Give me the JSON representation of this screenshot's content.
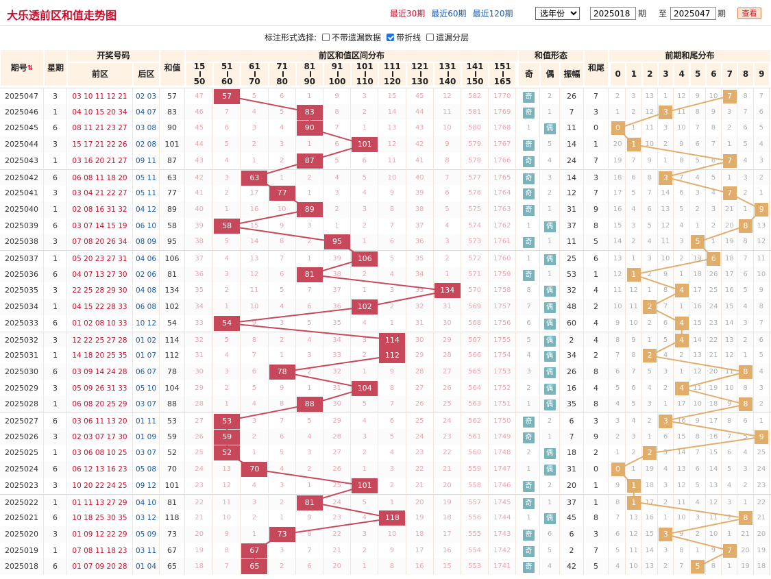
{
  "title": "大乐透前区和值走势图",
  "ranges": [
    "最近30期",
    "最近60期",
    "最近120期"
  ],
  "active_range": "最近30期",
  "year_select": "选年份",
  "period_from": "2025018",
  "period_to": "2025047",
  "label_qi": "期",
  "label_zhi": "至",
  "query_btn": "查看",
  "options_label": "标注形式选择:",
  "options": [
    {
      "label": "不带遗漏数据",
      "checked": false
    },
    {
      "label": "带折线",
      "checked": true
    },
    {
      "label": "遗漏分层",
      "checked": false
    }
  ],
  "headers": {
    "qihao": "期号",
    "sort_icon": "sort-icon",
    "xingqi": "星期",
    "kaijiang": "开奖号码",
    "qianqu": "前区",
    "houqu": "后区",
    "hezhi": "和值",
    "qujian_title": "前区和值区间分布",
    "xingtai": "和值形态",
    "ji": "奇",
    "ou": "偶",
    "zhenfu": "振幅",
    "hewei": "和尾",
    "weishu_title": "前期和尾分布"
  },
  "intervals": [
    [
      "15",
      "50"
    ],
    [
      "51",
      "60"
    ],
    [
      "61",
      "70"
    ],
    [
      "71",
      "80"
    ],
    [
      "81",
      "90"
    ],
    [
      "91",
      "100"
    ],
    [
      "101",
      "110"
    ],
    [
      "111",
      "120"
    ],
    [
      "121",
      "130"
    ],
    [
      "131",
      "140"
    ],
    [
      "141",
      "150"
    ],
    [
      "151",
      "165"
    ]
  ],
  "digits": [
    "0",
    "1",
    "2",
    "3",
    "4",
    "5",
    "6",
    "7",
    "8",
    "9"
  ],
  "colors": {
    "title": "#c8102e",
    "hit": "#c8485b",
    "tail": "#e1ad6b",
    "oe": "#78b4ba",
    "header_bg": "#fdf2e3"
  },
  "rows": [
    {
      "q": "2025047",
      "w": "3",
      "f": "03 10 11 12 21",
      "b": "02 03",
      "s": "57",
      "iv": [
        "47",
        "57",
        "5",
        "6",
        "1",
        "9",
        "3",
        "15",
        "45",
        "12",
        "582",
        "1770"
      ],
      "j": "奇",
      "o": "2",
      "zf": "26",
      "hw": "7",
      "t": [
        "2",
        "3",
        "13",
        "1",
        "12",
        "9",
        "10",
        "7",
        "8",
        "7"
      ]
    },
    {
      "q": "2025046",
      "w": "1",
      "f": "04 10 15 20 34",
      "b": "04 07",
      "s": "83",
      "iv": [
        "46",
        "7",
        "4",
        "5",
        "83",
        "8",
        "2",
        "14",
        "44",
        "11",
        "581",
        "1769"
      ],
      "j": "奇",
      "o": "1",
      "zf": "7",
      "hw": "3",
      "t": [
        "1",
        "2",
        "12",
        "3",
        "11",
        "8",
        "9",
        "3",
        "7",
        "6"
      ]
    },
    {
      "q": "2025045",
      "w": "6",
      "f": "08 11 21 23 27",
      "b": "03 08",
      "s": "90",
      "iv": [
        "45",
        "6",
        "3",
        "4",
        "90",
        "7",
        "1",
        "13",
        "43",
        "10",
        "580",
        "1768"
      ],
      "j": "1",
      "o": "偶",
      "zf": "11",
      "hw": "0",
      "t": [
        "0",
        "1",
        "11",
        "3",
        "10",
        "7",
        "8",
        "2",
        "6",
        "5"
      ]
    },
    {
      "q": "2025044",
      "w": "3",
      "f": "15 17 21 22 26",
      "b": "02 08",
      "s": "101",
      "iv": [
        "44",
        "5",
        "2",
        "3",
        "1",
        "6",
        "101",
        "12",
        "42",
        "9",
        "579",
        "1767"
      ],
      "j": "奇",
      "o": "5",
      "zf": "14",
      "hw": "1",
      "t": [
        "20",
        "1",
        "10",
        "2",
        "9",
        "6",
        "7",
        "1",
        "5",
        "4"
      ]
    },
    {
      "q": "2025043",
      "w": "1",
      "f": "03 16 20 21 27",
      "b": "09 11",
      "s": "87",
      "iv": [
        "43",
        "4",
        "1",
        "2",
        "87",
        "5",
        "6",
        "11",
        "41",
        "8",
        "578",
        "1766"
      ],
      "j": "奇",
      "o": "4",
      "zf": "24",
      "hw": "7",
      "t": [
        "19",
        "7",
        "9",
        "1",
        "8",
        "5",
        "6",
        "7",
        "4",
        "3"
      ]
    },
    {
      "q": "2025042",
      "w": "6",
      "f": "06 08 11 18 20",
      "b": "05 11",
      "s": "63",
      "iv": [
        "42",
        "3",
        "63",
        "1",
        "2",
        "4",
        "5",
        "10",
        "40",
        "7",
        "577",
        "1765"
      ],
      "j": "奇",
      "o": "3",
      "zf": "14",
      "hw": "3",
      "t": [
        "18",
        "6",
        "8",
        "3",
        "7",
        "4",
        "5",
        "1",
        "3",
        "2"
      ]
    },
    {
      "q": "2025041",
      "w": "3",
      "f": "03 04 21 22 27",
      "b": "05 11",
      "s": "77",
      "iv": [
        "41",
        "2",
        "17",
        "77",
        "1",
        "3",
        "4",
        "9",
        "39",
        "6",
        "576",
        "1764"
      ],
      "j": "奇",
      "o": "2",
      "zf": "12",
      "hw": "7",
      "t": [
        "17",
        "5",
        "7",
        "14",
        "6",
        "3",
        "4",
        "7",
        "2",
        "1"
      ]
    },
    {
      "q": "2025040",
      "w": "1",
      "f": "02 08 16 31 32",
      "b": "04 12",
      "s": "89",
      "iv": [
        "40",
        "1",
        "16",
        "10",
        "89",
        "2",
        "3",
        "8",
        "38",
        "5",
        "575",
        "1763"
      ],
      "j": "奇",
      "o": "1",
      "zf": "31",
      "hw": "9",
      "t": [
        "16",
        "4",
        "6",
        "13",
        "5",
        "2",
        "3",
        "21",
        "1",
        "9"
      ]
    },
    {
      "q": "2025039",
      "w": "6",
      "f": "03 07 14 15 19",
      "b": "06 10",
      "s": "58",
      "iv": [
        "39",
        "58",
        "15",
        "9",
        "3",
        "1",
        "2",
        "7",
        "37",
        "4",
        "574",
        "1762"
      ],
      "j": "1",
      "o": "偶",
      "zf": "37",
      "hw": "8",
      "t": [
        "15",
        "3",
        "5",
        "12",
        "4",
        "1",
        "2",
        "20",
        "8",
        "13"
      ]
    },
    {
      "q": "2025038",
      "w": "3",
      "f": "07 08 20 26 34",
      "b": "08 09",
      "s": "95",
      "iv": [
        "38",
        "5",
        "14",
        "8",
        "2",
        "95",
        "1",
        "6",
        "36",
        "3",
        "573",
        "1761"
      ],
      "j": "奇",
      "o": "1",
      "zf": "11",
      "hw": "5",
      "t": [
        "14",
        "2",
        "4",
        "11",
        "3",
        "5",
        "1",
        "19",
        "8",
        "12"
      ]
    },
    {
      "q": "2025037",
      "w": "1",
      "f": "05 20 23 27 31",
      "b": "04 06",
      "s": "106",
      "iv": [
        "37",
        "4",
        "13",
        "7",
        "1",
        "39",
        "106",
        "5",
        "35",
        "2",
        "572",
        "1760"
      ],
      "j": "1",
      "o": "偶",
      "zf": "25",
      "hw": "6",
      "t": [
        "13",
        "1",
        "3",
        "10",
        "2",
        "19",
        "6",
        "18",
        "7",
        "11"
      ]
    },
    {
      "q": "2025036",
      "w": "6",
      "f": "04 07 13 27 30",
      "b": "02 06",
      "s": "81",
      "iv": [
        "36",
        "3",
        "12",
        "6",
        "81",
        "38",
        "2",
        "4",
        "34",
        "1",
        "571",
        "1759"
      ],
      "j": "奇",
      "o": "1",
      "zf": "53",
      "hw": "1",
      "t": [
        "12",
        "1",
        "2",
        "9",
        "1",
        "18",
        "26",
        "17",
        "6",
        "10"
      ]
    },
    {
      "q": "2025035",
      "w": "3",
      "f": "22 25 28 29 30",
      "b": "04 08",
      "s": "134",
      "iv": [
        "35",
        "2",
        "11",
        "5",
        "7",
        "37",
        "1",
        "3",
        "33",
        "134",
        "570",
        "1758"
      ],
      "j": "8",
      "o": "偶",
      "zf": "32",
      "hw": "4",
      "t": [
        "11",
        "12",
        "1",
        "8",
        "4",
        "17",
        "25",
        "16",
        "5",
        "9"
      ]
    },
    {
      "q": "2025034",
      "w": "1",
      "f": "04 15 22 28 33",
      "b": "06 08",
      "s": "102",
      "iv": [
        "34",
        "1",
        "10",
        "4",
        "6",
        "36",
        "102",
        "2",
        "32",
        "31",
        "569",
        "1757"
      ],
      "j": "7",
      "o": "偶",
      "zf": "48",
      "hw": "2",
      "t": [
        "10",
        "11",
        "2",
        "7",
        "1",
        "16",
        "24",
        "15",
        "4",
        "8"
      ]
    },
    {
      "q": "2025033",
      "w": "6",
      "f": "01 02 08 10 33",
      "b": "10 12",
      "s": "54",
      "iv": [
        "33",
        "54",
        "9",
        "3",
        "5",
        "35",
        "4",
        "1",
        "31",
        "30",
        "568",
        "1756"
      ],
      "j": "6",
      "o": "偶",
      "zf": "60",
      "hw": "4",
      "t": [
        "9",
        "10",
        "2",
        "6",
        "4",
        "15",
        "23",
        "14",
        "3",
        "7"
      ]
    },
    {
      "q": "2025032",
      "w": "3",
      "f": "12 22 25 27 28",
      "b": "01 02",
      "s": "114",
      "iv": [
        "32",
        "5",
        "8",
        "2",
        "4",
        "34",
        "3",
        "114",
        "30",
        "29",
        "567",
        "1755"
      ],
      "j": "5",
      "o": "偶",
      "zf": "2",
      "hw": "4",
      "t": [
        "8",
        "9",
        "1",
        "5",
        "4",
        "14",
        "22",
        "13",
        "2",
        "6"
      ]
    },
    {
      "q": "2025031",
      "w": "1",
      "f": "14 18 20 25 35",
      "b": "01 07",
      "s": "112",
      "iv": [
        "31",
        "4",
        "7",
        "1",
        "3",
        "33",
        "2",
        "112",
        "29",
        "28",
        "566",
        "1754"
      ],
      "j": "4",
      "o": "偶",
      "zf": "34",
      "hw": "2",
      "t": [
        "7",
        "8",
        "2",
        "4",
        "2",
        "13",
        "21",
        "12",
        "1",
        "5"
      ]
    },
    {
      "q": "2025030",
      "w": "6",
      "f": "03 09 14 24 28",
      "b": "06 07",
      "s": "78",
      "iv": [
        "30",
        "3",
        "6",
        "78",
        "2",
        "32",
        "1",
        "9",
        "28",
        "27",
        "565",
        "1753"
      ],
      "j": "3",
      "o": "偶",
      "zf": "26",
      "hw": "8",
      "t": [
        "6",
        "7",
        "5",
        "3",
        "1",
        "12",
        "20",
        "11",
        "8",
        "4"
      ]
    },
    {
      "q": "2025029",
      "w": "3",
      "f": "05 09 26 31 33",
      "b": "05 10",
      "s": "104",
      "iv": [
        "29",
        "2",
        "5",
        "9",
        "1",
        "31",
        "104",
        "8",
        "27",
        "26",
        "564",
        "1752"
      ],
      "j": "2",
      "o": "偶",
      "zf": "16",
      "hw": "4",
      "t": [
        "5",
        "6",
        "4",
        "2",
        "4",
        "11",
        "19",
        "10",
        "8",
        "3"
      ]
    },
    {
      "q": "2025028",
      "w": "1",
      "f": "06 08 20 25 29",
      "b": "03 07",
      "s": "88",
      "iv": [
        "28",
        "1",
        "4",
        "8",
        "88",
        "30",
        "5",
        "7",
        "26",
        "25",
        "563",
        "1751"
      ],
      "j": "1",
      "o": "偶",
      "zf": "35",
      "hw": "8",
      "t": [
        "4",
        "5",
        "3",
        "1",
        "17",
        "10",
        "18",
        "9",
        "8",
        "2"
      ]
    },
    {
      "q": "2025027",
      "w": "6",
      "f": "03 06 11 13 20",
      "b": "01 11",
      "s": "53",
      "iv": [
        "27",
        "53",
        "3",
        "7",
        "5",
        "29",
        "4",
        "6",
        "25",
        "24",
        "562",
        "1750"
      ],
      "j": "奇",
      "o": "2",
      "zf": "6",
      "hw": "3",
      "t": [
        "3",
        "4",
        "2",
        "3",
        "16",
        "9",
        "17",
        "8",
        "6",
        "1"
      ]
    },
    {
      "q": "2025026",
      "w": "3",
      "f": "02 03 07 17 30",
      "b": "01 09",
      "s": "59",
      "iv": [
        "26",
        "59",
        "2",
        "6",
        "4",
        "28",
        "3",
        "5",
        "24",
        "23",
        "561",
        "1749"
      ],
      "j": "奇",
      "o": "1",
      "zf": "7",
      "hw": "9",
      "t": [
        "2",
        "3",
        "1",
        "6",
        "15",
        "8",
        "16",
        "7",
        "5",
        "9"
      ]
    },
    {
      "q": "2025025",
      "w": "1",
      "f": "03 06 08 10 25",
      "b": "03 07",
      "s": "52",
      "iv": [
        "25",
        "52",
        "1",
        "5",
        "3",
        "27",
        "2",
        "4",
        "23",
        "22",
        "560",
        "1748"
      ],
      "j": "2",
      "o": "偶",
      "zf": "18",
      "hw": "2",
      "t": [
        "1",
        "2",
        "2",
        "5",
        "14",
        "7",
        "15",
        "6",
        "4",
        "25"
      ]
    },
    {
      "q": "2025024",
      "w": "6",
      "f": "06 12 13 16 23",
      "b": "05 08",
      "s": "70",
      "iv": [
        "24",
        "13",
        "70",
        "4",
        "2",
        "26",
        "1",
        "3",
        "22",
        "21",
        "559",
        "1747"
      ],
      "j": "1",
      "o": "偶",
      "zf": "31",
      "hw": "0",
      "t": [
        "0",
        "1",
        "19",
        "4",
        "13",
        "6",
        "14",
        "5",
        "3",
        "24"
      ]
    },
    {
      "q": "2025023",
      "w": "3",
      "f": "10 20 22 24 25",
      "b": "09 12",
      "s": "101",
      "iv": [
        "23",
        "12",
        "4",
        "3",
        "1",
        "25",
        "101",
        "2",
        "21",
        "20",
        "558",
        "1746"
      ],
      "j": "奇",
      "o": "2",
      "zf": "20",
      "hw": "1",
      "t": [
        "9",
        "1",
        "18",
        "3",
        "12",
        "5",
        "13",
        "4",
        "2",
        "23"
      ]
    },
    {
      "q": "2025022",
      "w": "1",
      "f": "01 11 13 27 29",
      "b": "04 10",
      "s": "81",
      "iv": [
        "22",
        "11",
        "3",
        "2",
        "81",
        "24",
        "5",
        "1",
        "20",
        "19",
        "557",
        "1745"
      ],
      "j": "奇",
      "o": "1",
      "zf": "37",
      "hw": "1",
      "t": [
        "8",
        "1",
        "17",
        "2",
        "11",
        "4",
        "12",
        "3",
        "1",
        "22"
      ]
    },
    {
      "q": "2025021",
      "w": "6",
      "f": "10 18 25 30 35",
      "b": "03 12",
      "s": "118",
      "iv": [
        "21",
        "10",
        "2",
        "1",
        "9",
        "23",
        "4",
        "118",
        "19",
        "18",
        "556",
        "1744"
      ],
      "j": "1",
      "o": "偶",
      "zf": "45",
      "hw": "8",
      "t": [
        "7",
        "13",
        "16",
        "1",
        "10",
        "3",
        "11",
        "2",
        "8",
        "21"
      ]
    },
    {
      "q": "2025020",
      "w": "3",
      "f": "01 09 12 22 29",
      "b": "05 09",
      "s": "73",
      "iv": [
        "20",
        "9",
        "1",
        "73",
        "8",
        "22",
        "3",
        "10",
        "18",
        "17",
        "555",
        "1743"
      ],
      "j": "奇",
      "o": "6",
      "zf": "6",
      "hw": "3",
      "t": [
        "6",
        "12",
        "15",
        "3",
        "9",
        "2",
        "10",
        "1",
        "21",
        "20"
      ]
    },
    {
      "q": "2025019",
      "w": "1",
      "f": "07 08 11 18 23",
      "b": "03 11",
      "s": "67",
      "iv": [
        "19",
        "8",
        "67",
        "3",
        "7",
        "21",
        "2",
        "9",
        "17",
        "16",
        "554",
        "1742"
      ],
      "j": "奇",
      "o": "5",
      "zf": "2",
      "hw": "7",
      "t": [
        "5",
        "11",
        "14",
        "3",
        "8",
        "1",
        "9",
        "7",
        "20",
        "19"
      ]
    },
    {
      "q": "2025018",
      "w": "6",
      "f": "01 07 09 20 28",
      "b": "01 04",
      "s": "65",
      "iv": [
        "18",
        "7",
        "65",
        "2",
        "6",
        "20",
        "1",
        "8",
        "16",
        "15",
        "553",
        "1741"
      ],
      "j": "奇",
      "o": "4",
      "zf": "42",
      "hw": "5",
      "t": [
        "4",
        "10",
        "13",
        "2",
        "7",
        "5",
        "8",
        "1",
        "19",
        "18"
      ]
    }
  ]
}
